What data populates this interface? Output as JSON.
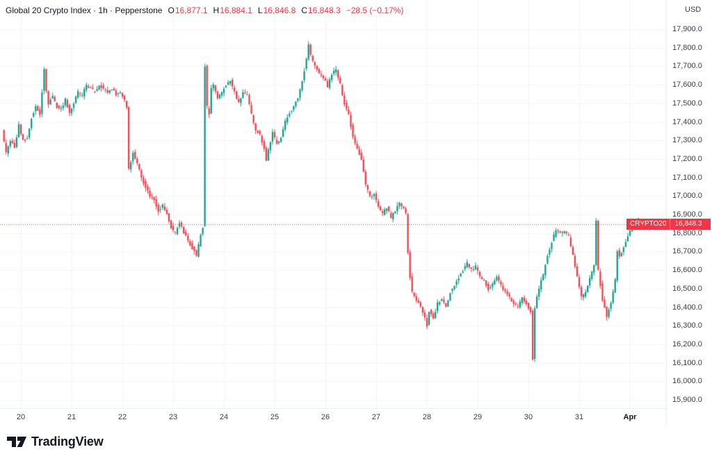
{
  "header": {
    "symbol_title": "Global 20 Crypto Index · 1h · Pepperstone",
    "ohlc": {
      "o_label": "O",
      "o": "16,877.1",
      "h_label": "H",
      "h": "16,884.1",
      "l_label": "L",
      "l": "16,846.8",
      "c_label": "C",
      "c": "16,848.3",
      "change": "−28.5 (−0.17%)"
    }
  },
  "axis": {
    "currency": "USD",
    "price_labels": [
      "17,900.0",
      "17,800.0",
      "17,700.0",
      "17,600.0",
      "17,500.0",
      "17,400.0",
      "17,300.0",
      "17,200.0",
      "17,100.0",
      "17,000.0",
      "16,900.0",
      "16,800.0",
      "16,700.0",
      "16,600.0",
      "16,500.0",
      "16,400.0",
      "16,300.0",
      "16,200.0",
      "16,100.0",
      "16,000.0",
      "15,900.0"
    ],
    "time_labels": [
      "20",
      "21",
      "22",
      "23",
      "24",
      "25",
      "26",
      "27",
      "28",
      "29",
      "30",
      "31",
      "Apr"
    ]
  },
  "price_line": {
    "label": "CRYPTO20",
    "price": "16,848.3",
    "value": 16848.3
  },
  "colors": {
    "up": "#089981",
    "down": "#f23645",
    "grid": "#f0f3fa",
    "axis_text": "#3a3e47",
    "accent_red": "#f23645"
  },
  "logo": {
    "text": "TradingView"
  },
  "chart_data": {
    "type": "candlestick",
    "title": "Global 20 Crypto Index",
    "timeframe": "1h",
    "broker": "Pepperstone",
    "currency": "USD",
    "ylim": [
      15900,
      17900
    ],
    "grid": true,
    "t_range": [
      -8,
      293
    ],
    "day_tick_step_hours": 24,
    "last_candle": [
      16877.1,
      16884.1,
      16846.8,
      16848.3
    ],
    "keypoints": [
      [
        -8,
        17350
      ],
      [
        -6,
        17230
      ],
      [
        -4,
        17300
      ],
      [
        -2,
        17260
      ],
      [
        0,
        17380
      ],
      [
        2,
        17300
      ],
      [
        4,
        17310
      ],
      [
        6,
        17420
      ],
      [
        8,
        17480
      ],
      [
        10,
        17440
      ],
      [
        12,
        17690
      ],
      [
        13,
        17560
      ],
      [
        14,
        17500
      ],
      [
        16,
        17540
      ],
      [
        18,
        17480
      ],
      [
        20,
        17470
      ],
      [
        22,
        17520
      ],
      [
        24,
        17450
      ],
      [
        26,
        17500
      ],
      [
        28,
        17560
      ],
      [
        30,
        17540
      ],
      [
        32,
        17600
      ],
      [
        34,
        17580
      ],
      [
        36,
        17560
      ],
      [
        38,
        17600
      ],
      [
        40,
        17580
      ],
      [
        42,
        17560
      ],
      [
        44,
        17580
      ],
      [
        46,
        17550
      ],
      [
        48,
        17560
      ],
      [
        50,
        17520
      ],
      [
        51,
        17480
      ],
      [
        52,
        17150
      ],
      [
        54,
        17230
      ],
      [
        56,
        17180
      ],
      [
        58,
        17100
      ],
      [
        60,
        17050
      ],
      [
        62,
        17000
      ],
      [
        64,
        16980
      ],
      [
        66,
        16920
      ],
      [
        68,
        16950
      ],
      [
        70,
        16900
      ],
      [
        72,
        16830
      ],
      [
        74,
        16800
      ],
      [
        76,
        16860
      ],
      [
        78,
        16800
      ],
      [
        80,
        16760
      ],
      [
        82,
        16720
      ],
      [
        84,
        16680
      ],
      [
        86,
        16790
      ],
      [
        87,
        16830
      ],
      [
        88,
        17700
      ],
      [
        89,
        17480
      ],
      [
        90,
        17440
      ],
      [
        91,
        17580
      ],
      [
        92,
        17600
      ],
      [
        94,
        17520
      ],
      [
        96,
        17560
      ],
      [
        98,
        17600
      ],
      [
        100,
        17620
      ],
      [
        102,
        17560
      ],
      [
        104,
        17500
      ],
      [
        106,
        17560
      ],
      [
        108,
        17540
      ],
      [
        110,
        17440
      ],
      [
        112,
        17360
      ],
      [
        114,
        17330
      ],
      [
        116,
        17260
      ],
      [
        117,
        17190
      ],
      [
        118,
        17250
      ],
      [
        120,
        17340
      ],
      [
        122,
        17280
      ],
      [
        124,
        17320
      ],
      [
        126,
        17400
      ],
      [
        128,
        17450
      ],
      [
        130,
        17480
      ],
      [
        132,
        17530
      ],
      [
        134,
        17620
      ],
      [
        136,
        17740
      ],
      [
        137,
        17820
      ],
      [
        138,
        17760
      ],
      [
        140,
        17700
      ],
      [
        142,
        17660
      ],
      [
        144,
        17640
      ],
      [
        146,
        17590
      ],
      [
        148,
        17660
      ],
      [
        150,
        17680
      ],
      [
        152,
        17600
      ],
      [
        154,
        17500
      ],
      [
        156,
        17440
      ],
      [
        158,
        17320
      ],
      [
        160,
        17260
      ],
      [
        162,
        17200
      ],
      [
        164,
        17060
      ],
      [
        166,
        17000
      ],
      [
        168,
        17010
      ],
      [
        170,
        16940
      ],
      [
        172,
        16900
      ],
      [
        174,
        16940
      ],
      [
        176,
        16880
      ],
      [
        178,
        16920
      ],
      [
        180,
        16960
      ],
      [
        182,
        16940
      ],
      [
        183,
        16900
      ],
      [
        184,
        16700
      ],
      [
        185,
        16560
      ],
      [
        186,
        16480
      ],
      [
        188,
        16440
      ],
      [
        190,
        16400
      ],
      [
        192,
        16340
      ],
      [
        193,
        16300
      ],
      [
        194,
        16380
      ],
      [
        196,
        16340
      ],
      [
        198,
        16420
      ],
      [
        200,
        16440
      ],
      [
        202,
        16400
      ],
      [
        204,
        16480
      ],
      [
        206,
        16520
      ],
      [
        208,
        16560
      ],
      [
        210,
        16600
      ],
      [
        212,
        16640
      ],
      [
        214,
        16600
      ],
      [
        216,
        16620
      ],
      [
        218,
        16560
      ],
      [
        220,
        16540
      ],
      [
        222,
        16500
      ],
      [
        224,
        16530
      ],
      [
        226,
        16560
      ],
      [
        228,
        16520
      ],
      [
        230,
        16480
      ],
      [
        232,
        16450
      ],
      [
        234,
        16420
      ],
      [
        236,
        16400
      ],
      [
        238,
        16450
      ],
      [
        240,
        16420
      ],
      [
        242,
        16380
      ],
      [
        243,
        16120
      ],
      [
        244,
        16400
      ],
      [
        246,
        16500
      ],
      [
        248,
        16580
      ],
      [
        250,
        16680
      ],
      [
        252,
        16750
      ],
      [
        254,
        16820
      ],
      [
        256,
        16800
      ],
      [
        258,
        16810
      ],
      [
        260,
        16780
      ],
      [
        262,
        16680
      ],
      [
        264,
        16560
      ],
      [
        266,
        16450
      ],
      [
        268,
        16480
      ],
      [
        270,
        16550
      ],
      [
        272,
        16620
      ],
      [
        273,
        16860
      ],
      [
        274,
        16600
      ],
      [
        275,
        16520
      ],
      [
        276,
        16440
      ],
      [
        278,
        16350
      ],
      [
        280,
        16420
      ],
      [
        282,
        16550
      ],
      [
        283,
        16700
      ],
      [
        284,
        16680
      ],
      [
        286,
        16720
      ],
      [
        288,
        16790
      ],
      [
        290,
        16820
      ],
      [
        292,
        16840
      ],
      [
        293,
        16848.3
      ]
    ]
  }
}
